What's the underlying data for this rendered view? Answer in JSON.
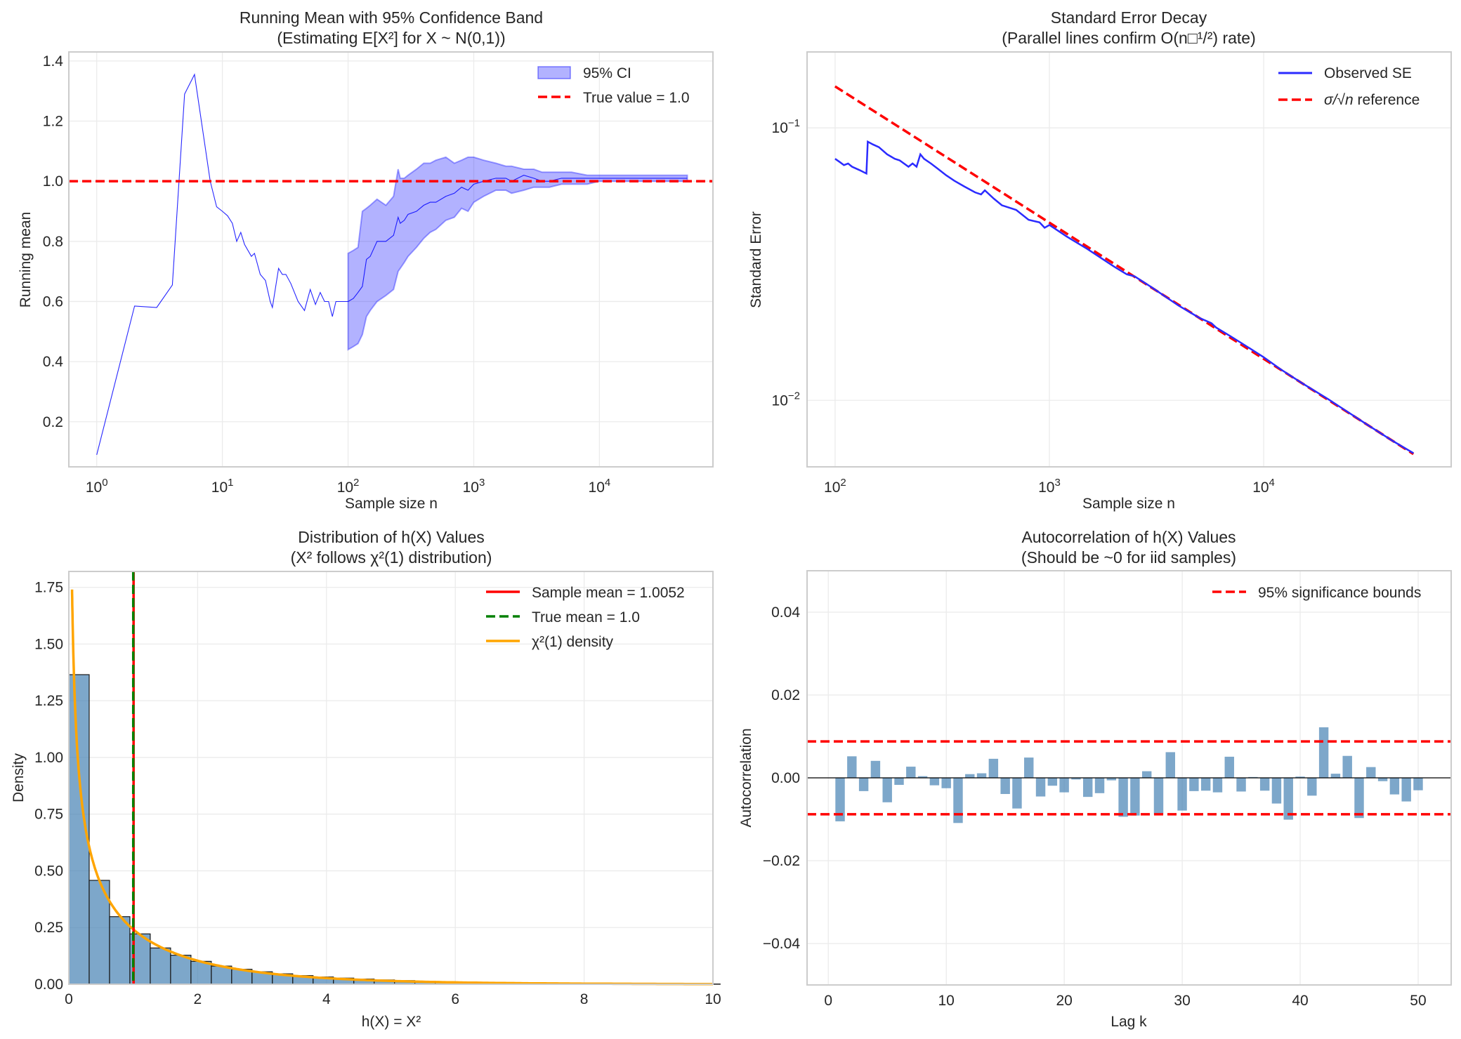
{
  "chart_data": [
    {
      "id": "running-mean",
      "type": "line",
      "title": "Running Mean with 95% Confidence Band",
      "subtitle": "(Estimating E[X²] for X ~ N(0,1))",
      "xlabel": "Sample size n",
      "ylabel": "Running mean",
      "xscale": "log",
      "xlim": [
        0.6,
        80000
      ],
      "ylim": [
        0.05,
        1.43
      ],
      "grid": true,
      "legend_position": "top-right",
      "xticks": [
        {
          "base": "10",
          "exp": "0",
          "value": 1
        },
        {
          "base": "10",
          "exp": "1",
          "value": 10
        },
        {
          "base": "10",
          "exp": "2",
          "value": 100
        },
        {
          "base": "10",
          "exp": "3",
          "value": 1000
        },
        {
          "base": "10",
          "exp": "4",
          "value": 10000
        }
      ],
      "yticks": [
        0.2,
        0.4,
        0.6,
        0.8,
        1.0,
        1.2,
        1.4
      ],
      "ytick_labels": [
        "0.2",
        "0.4",
        "0.6",
        "0.8",
        "1.0",
        "1.2",
        "1.4"
      ],
      "series": [
        {
          "name": "Running mean",
          "color": "#0000ff",
          "x": [
            1,
            2,
            3,
            4,
            5,
            6,
            8,
            9,
            10,
            11,
            12,
            13,
            14,
            15,
            17,
            18,
            20,
            22,
            24,
            25,
            28,
            30,
            32,
            35,
            40,
            45,
            50,
            55,
            60,
            65,
            70,
            75,
            80,
            90,
            95,
            100,
            110,
            120,
            130,
            140,
            150,
            170,
            200,
            230,
            250,
            260,
            280,
            300,
            350,
            400,
            450,
            500,
            600,
            700,
            800,
            900,
            1000,
            1200,
            1500,
            1800,
            2000,
            2500,
            3000,
            3500,
            4000,
            5000,
            6000,
            8000,
            10000,
            15000,
            20000,
            30000,
            40000,
            50000
          ],
          "y": [
            0.09,
            0.585,
            0.58,
            0.655,
            1.29,
            1.355,
            1.0,
            0.915,
            0.9,
            0.885,
            0.86,
            0.8,
            0.83,
            0.79,
            0.75,
            0.76,
            0.69,
            0.67,
            0.6,
            0.58,
            0.71,
            0.69,
            0.69,
            0.66,
            0.6,
            0.57,
            0.64,
            0.59,
            0.63,
            0.6,
            0.6,
            0.55,
            0.6,
            0.6,
            0.6,
            0.6,
            0.61,
            0.63,
            0.65,
            0.74,
            0.75,
            0.8,
            0.8,
            0.82,
            0.88,
            0.86,
            0.87,
            0.89,
            0.9,
            0.92,
            0.93,
            0.93,
            0.95,
            0.96,
            0.98,
            0.97,
            0.99,
            1.0,
            1.01,
            1.01,
            1.0,
            1.02,
            1.01,
            1.0,
            1.0,
            1.01,
            1.01,
            1.01,
            1.01,
            1.01,
            1.01,
            1.01,
            1.01,
            1.01
          ]
        },
        {
          "name": "95% CI",
          "color": "#0000ff",
          "alpha": 0.3,
          "x": [
            100,
            110,
            120,
            130,
            140,
            150,
            170,
            200,
            230,
            250,
            260,
            280,
            300,
            350,
            400,
            450,
            500,
            600,
            700,
            800,
            900,
            1000,
            1200,
            1500,
            1800,
            2000,
            2500,
            3000,
            3500,
            4000,
            5000,
            6000,
            8000,
            10000,
            15000,
            20000,
            30000,
            40000,
            50000
          ],
          "lower": [
            0.44,
            0.45,
            0.46,
            0.49,
            0.55,
            0.57,
            0.6,
            0.62,
            0.64,
            0.7,
            0.71,
            0.73,
            0.75,
            0.78,
            0.81,
            0.83,
            0.84,
            0.87,
            0.88,
            0.91,
            0.9,
            0.93,
            0.95,
            0.97,
            0.97,
            0.96,
            0.97,
            0.98,
            0.98,
            0.98,
            0.99,
            0.99,
            0.99,
            1.0,
            1.0,
            1.0,
            1.0,
            1.0,
            1.0
          ],
          "upper": [
            0.76,
            0.77,
            0.78,
            0.9,
            0.91,
            0.92,
            0.94,
            0.92,
            0.95,
            1.04,
            1.01,
            1.01,
            1.02,
            1.04,
            1.06,
            1.06,
            1.07,
            1.08,
            1.06,
            1.07,
            1.08,
            1.08,
            1.07,
            1.06,
            1.05,
            1.05,
            1.04,
            1.04,
            1.03,
            1.03,
            1.03,
            1.03,
            1.02,
            1.02,
            1.02,
            1.02,
            1.02,
            1.02,
            1.02
          ]
        },
        {
          "name": "True value = 1.0",
          "color": "#ff0000",
          "style": "dashed",
          "y_const": 1.0
        }
      ],
      "legend": [
        {
          "label": "95% CI",
          "kind": "patch",
          "color": "#0000ff"
        },
        {
          "label": "True value = 1.0",
          "kind": "dashed",
          "color": "#ff0000"
        }
      ]
    },
    {
      "id": "se-decay",
      "type": "line",
      "title": "Standard Error Decay",
      "subtitle": "(Parallel lines confirm O(n□¹/²) rate)",
      "xlabel": "Sample size n",
      "ylabel": "Standard Error",
      "xscale": "log",
      "yscale": "log",
      "xlim": [
        74,
        75000
      ],
      "ylim": [
        0.0057,
        0.19
      ],
      "grid": true,
      "legend_position": "top-right",
      "xticks": [
        {
          "base": "10",
          "exp": "2",
          "value": 100
        },
        {
          "base": "10",
          "exp": "3",
          "value": 1000
        },
        {
          "base": "10",
          "exp": "4",
          "value": 10000
        }
      ],
      "yticks": [
        {
          "base": "10",
          "exp": "−1",
          "value": 0.1
        },
        {
          "base": "10",
          "exp": "−2",
          "value": 0.01
        }
      ],
      "series": [
        {
          "name": "Observed SE",
          "color": "#2b2bff",
          "x": [
            100,
            105,
            110,
            115,
            120,
            130,
            140,
            142,
            150,
            160,
            175,
            190,
            200,
            220,
            230,
            240,
            250,
            260,
            280,
            300,
            330,
            360,
            400,
            450,
            480,
            500,
            550,
            600,
            700,
            800,
            900,
            950,
            1000,
            1200,
            1500,
            2000,
            2300,
            2500,
            3000,
            4000,
            5000,
            5700,
            6000,
            7000,
            8000,
            10000,
            12000,
            15000,
            20000,
            30000,
            40000,
            50000
          ],
          "y": [
            0.077,
            0.075,
            0.073,
            0.074,
            0.072,
            0.07,
            0.068,
            0.089,
            0.087,
            0.085,
            0.08,
            0.077,
            0.076,
            0.072,
            0.074,
            0.072,
            0.08,
            0.077,
            0.074,
            0.071,
            0.067,
            0.064,
            0.061,
            0.058,
            0.057,
            0.059,
            0.055,
            0.052,
            0.05,
            0.046,
            0.045,
            0.043,
            0.044,
            0.04,
            0.036,
            0.031,
            0.029,
            0.0285,
            0.026,
            0.0223,
            0.0201,
            0.0192,
            0.0185,
            0.0172,
            0.0161,
            0.0144,
            0.013,
            0.0116,
            0.0101,
            0.0082,
            0.0071,
            0.0064
          ]
        },
        {
          "name": "σ/√n reference",
          "color": "#ff0000",
          "style": "dashed",
          "sigma": 1.42,
          "x_range": [
            100,
            50000
          ]
        }
      ],
      "legend": [
        {
          "label": "Observed SE",
          "kind": "line",
          "color": "#2b2bff"
        },
        {
          "label_prefix": "σ/√",
          "label_var": "n",
          "label_suffix": " reference",
          "kind": "dashed",
          "color": "#ff0000"
        }
      ]
    },
    {
      "id": "histogram",
      "type": "bar",
      "title": "Distribution of h(X) Values",
      "subtitle": "(X² follows χ²(1) distribution)",
      "xlabel": "h(X) = X²",
      "ylabel": "Density",
      "xlim": [
        0,
        10
      ],
      "ylim": [
        0,
        1.82
      ],
      "grid": true,
      "legend_position": "top-right",
      "xticks": [
        0,
        2,
        4,
        6,
        8,
        10
      ],
      "xtick_labels": [
        "0",
        "2",
        "4",
        "6",
        "8",
        "10"
      ],
      "yticks": [
        0,
        0.25,
        0.5,
        0.75,
        1.0,
        1.25,
        1.5,
        1.75
      ],
      "ytick_labels": [
        "0.00",
        "0.25",
        "0.50",
        "0.75",
        "1.00",
        "1.25",
        "1.50",
        "1.75"
      ],
      "bin_width": 0.316,
      "bin_color": "#4682b4",
      "values": [
        1.365,
        0.458,
        0.298,
        0.222,
        0.16,
        0.128,
        0.101,
        0.08,
        0.066,
        0.055,
        0.046,
        0.038,
        0.032,
        0.027,
        0.023,
        0.019,
        0.016,
        0.013,
        0.011,
        0.01,
        0.008,
        0.007,
        0.006,
        0.005,
        0.004,
        0.004,
        0.003,
        0.003,
        0.002,
        0.002,
        0.002,
        0.001
      ],
      "sample_mean": 1.0052,
      "true_mean": 1.0,
      "density_curve": {
        "name": "χ²(1) density",
        "color": "#ffa500",
        "x_start": 0.05,
        "x_end": 10
      },
      "legend": [
        {
          "label": "Sample mean = 1.0052",
          "kind": "line",
          "color": "#ff0000"
        },
        {
          "label": "True mean = 1.0",
          "kind": "dashed",
          "color": "#008000"
        },
        {
          "label": "χ²(1) density",
          "kind": "line",
          "color": "#ffa500"
        }
      ]
    },
    {
      "id": "autocorrelation",
      "type": "bar",
      "title": "Autocorrelation of h(X) Values",
      "subtitle": "(Should be ~0 for iid samples)",
      "xlabel": "Lag k",
      "ylabel": "Autocorrelation",
      "xlim": [
        -1.8,
        52.8
      ],
      "ylim": [
        -0.05,
        0.05
      ],
      "grid": true,
      "legend_position": "top-right",
      "xticks": [
        0,
        10,
        20,
        30,
        40,
        50
      ],
      "xtick_labels": [
        "0",
        "10",
        "20",
        "30",
        "40",
        "50"
      ],
      "yticks": [
        -0.04,
        -0.02,
        0.0,
        0.02,
        0.04
      ],
      "ytick_labels": [
        "−0.04",
        "−0.02",
        "0.00",
        "0.02",
        "0.04"
      ],
      "bar_color": "#4682b4",
      "categories": [
        1,
        2,
        3,
        4,
        5,
        6,
        7,
        8,
        9,
        10,
        11,
        12,
        13,
        14,
        15,
        16,
        17,
        18,
        19,
        20,
        21,
        22,
        23,
        24,
        25,
        26,
        27,
        28,
        29,
        30,
        31,
        32,
        33,
        34,
        35,
        36,
        37,
        38,
        39,
        40,
        41,
        42,
        43,
        44,
        45,
        46,
        47,
        48,
        49,
        50
      ],
      "values": [
        -0.0105,
        0.0052,
        -0.0032,
        0.0041,
        -0.0059,
        -0.0017,
        0.0027,
        0.0004,
        -0.0018,
        -0.0025,
        -0.0109,
        0.0009,
        0.0011,
        0.0046,
        -0.0039,
        -0.0074,
        0.0049,
        -0.0045,
        -0.0019,
        -0.0035,
        -0.0004,
        -0.0046,
        -0.0037,
        -0.0006,
        -0.0094,
        -0.0091,
        0.0016,
        -0.0089,
        0.0062,
        -0.0079,
        -0.0032,
        -0.0031,
        -0.0035,
        0.0051,
        -0.0033,
        0.0002,
        -0.0031,
        -0.0062,
        -0.0101,
        0.0003,
        -0.0043,
        0.0122,
        0.001,
        0.0053,
        -0.0097,
        0.0026,
        -0.0008,
        -0.004,
        -0.0057,
        -0.003
      ],
      "bound": 0.0088,
      "legend": [
        {
          "label": "95% significance bounds",
          "kind": "dashed",
          "color": "#ff0000"
        }
      ]
    }
  ]
}
